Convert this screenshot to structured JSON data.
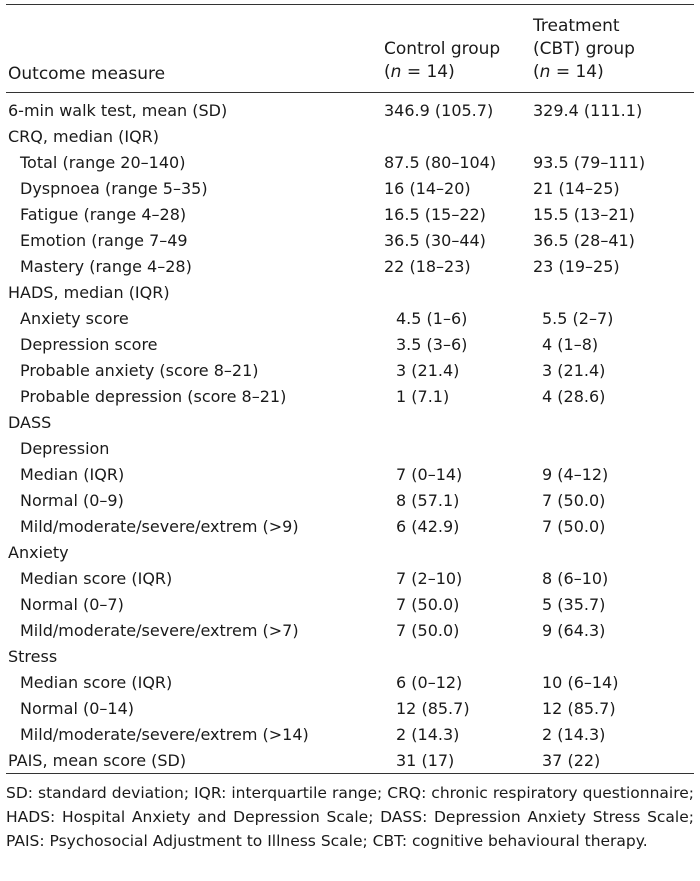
{
  "header": {
    "col0": "Outcome measure",
    "col1_line1": "Control group",
    "col1_line2": "(n = 14)",
    "col2_line1": "Treatment",
    "col2_line2": "(CBT) group",
    "col2_line3": "(n = 14)"
  },
  "rows": [
    {
      "label": "6-min walk test, mean (SD)",
      "indent": false,
      "control": "346.9 (105.7)",
      "treatment": "329.4 (111.1)"
    },
    {
      "label": "CRQ, median (IQR)",
      "indent": false,
      "control": "",
      "treatment": ""
    },
    {
      "label": "Total (range 20–140)",
      "indent": true,
      "control": "87.5 (80–104)",
      "treatment": "93.5 (79–111)"
    },
    {
      "label": "Dyspnoea (range 5–35)",
      "indent": true,
      "control": "16 (14–20)",
      "treatment": "21 (14–25)"
    },
    {
      "label": "Fatigue (range 4–28)",
      "indent": true,
      "control": "16.5 (15–22)",
      "treatment": "15.5 (13–21)"
    },
    {
      "label": "Emotion (range 7–49",
      "indent": true,
      "control": "36.5 (30–44)",
      "treatment": "36.5 (28–41)"
    },
    {
      "label": "Mastery (range 4–28)",
      "indent": true,
      "control": "22 (18–23)",
      "treatment": "23 (19–25)"
    },
    {
      "label": "HADS, median (IQR)",
      "indent": false,
      "control": "",
      "treatment": ""
    },
    {
      "label": "Anxiety score",
      "indent": true,
      "control": "4.5 (1–6)",
      "treatment": "5.5 (2–7)"
    },
    {
      "label": "Depression score",
      "indent": true,
      "control": "3.5 (3–6)",
      "treatment": "4 (1–8)"
    },
    {
      "label": "Probable anxiety (score 8–21)",
      "indent": true,
      "control": "3 (21.4)",
      "treatment": "3 (21.4)"
    },
    {
      "label": "Probable depression (score 8–21)",
      "indent": true,
      "control": "1 (7.1)",
      "treatment": "4 (28.6)"
    },
    {
      "label": "DASS",
      "indent": false,
      "control": "",
      "treatment": ""
    },
    {
      "label": "Depression",
      "indent": true,
      "control": "",
      "treatment": ""
    },
    {
      "label": "Median (IQR)",
      "indent": true,
      "control": "7 (0–14)",
      "treatment": "9 (4–12)"
    },
    {
      "label": "Normal (0–9)",
      "indent": true,
      "control": "8 (57.1)",
      "treatment": "7 (50.0)"
    },
    {
      "label": "Mild/moderate/severe/extrem (>9)",
      "indent": true,
      "control": "6 (42.9)",
      "treatment": "7 (50.0)"
    },
    {
      "label": "Anxiety",
      "indent": false,
      "control": "",
      "treatment": ""
    },
    {
      "label": "Median score (IQR)",
      "indent": true,
      "control": "7 (2–10)",
      "treatment": "8 (6–10)"
    },
    {
      "label": "Normal (0–7)",
      "indent": true,
      "control": "7 (50.0)",
      "treatment": "5 (35.7)"
    },
    {
      "label": "Mild/moderate/severe/extrem (>7)",
      "indent": true,
      "control": "7 (50.0)",
      "treatment": "9 (64.3)"
    },
    {
      "label": "Stress",
      "indent": false,
      "control": "",
      "treatment": ""
    },
    {
      "label": "Median score (IQR)",
      "indent": true,
      "control": "6 (0–12)",
      "treatment": "10 (6–14)"
    },
    {
      "label": "Normal (0–14)",
      "indent": true,
      "control": "12 (85.7)",
      "treatment": "12 (85.7)"
    },
    {
      "label": "Mild/moderate/severe/extrem (>14)",
      "indent": true,
      "control": "2 (14.3)",
      "treatment": "2 (14.3)"
    },
    {
      "label": "PAIS, mean score (SD)",
      "indent": false,
      "control": "31 (17)",
      "treatment": "37 (22)"
    }
  ],
  "footnote": "SD: standard deviation; IQR: interquartile range; CRQ: chronic respiratory questionnaire; HADS: Hospital Anxiety and Depression Scale; DASS: Depression Anxiety Stress Scale; PAIS: Psychosocial Adjustment to Illness Scale; CBT: cognitive behavioural therapy."
}
